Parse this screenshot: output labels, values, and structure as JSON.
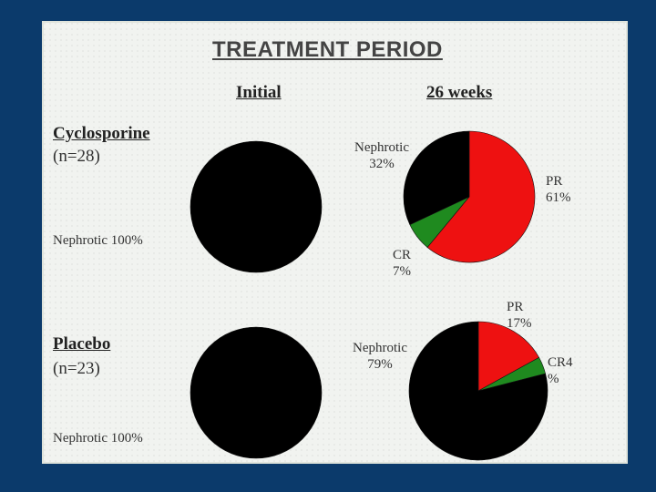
{
  "slide": {
    "title": "TREATMENT PERIOD",
    "col_initial": "Initial",
    "col_26weeks": "26 weeks"
  },
  "groups": [
    {
      "name": "Cyclosporine",
      "n": "(n=28)",
      "initial_label": "Nephrotic 100%"
    },
    {
      "name": "Placebo",
      "n": "(n=23)",
      "initial_label": "Nephrotic 100%"
    }
  ],
  "chart_data": [
    {
      "type": "pie",
      "title": "",
      "group": "Cyclosporine",
      "period": "Initial",
      "slices": [
        {
          "label": "Nephrotic",
          "value": 100,
          "color": "#000000"
        }
      ]
    },
    {
      "type": "pie",
      "title": "",
      "group": "Cyclosporine",
      "period": "26 weeks",
      "slices": [
        {
          "label": "PR",
          "value": 61,
          "text": "61%",
          "color": "#ee1111"
        },
        {
          "label": "CR",
          "value": 7,
          "text": "7%",
          "color": "#1f8a1f"
        },
        {
          "label": "Nephrotic",
          "value": 32,
          "text": "32%",
          "color": "#000000"
        }
      ]
    },
    {
      "type": "pie",
      "title": "",
      "group": "Placebo",
      "period": "Initial",
      "slices": [
        {
          "label": "Nephrotic",
          "value": 100,
          "color": "#000000"
        }
      ]
    },
    {
      "type": "pie",
      "title": "",
      "group": "Placebo",
      "period": "26 weeks",
      "slices": [
        {
          "label": "PR",
          "value": 17,
          "text": "17%",
          "color": "#ee1111"
        },
        {
          "label": "CR4",
          "value": 4,
          "text": "%",
          "color": "#1f8a1f"
        },
        {
          "label": "Nephrotic",
          "value": 79,
          "text": "79%",
          "color": "#000000"
        }
      ]
    }
  ]
}
